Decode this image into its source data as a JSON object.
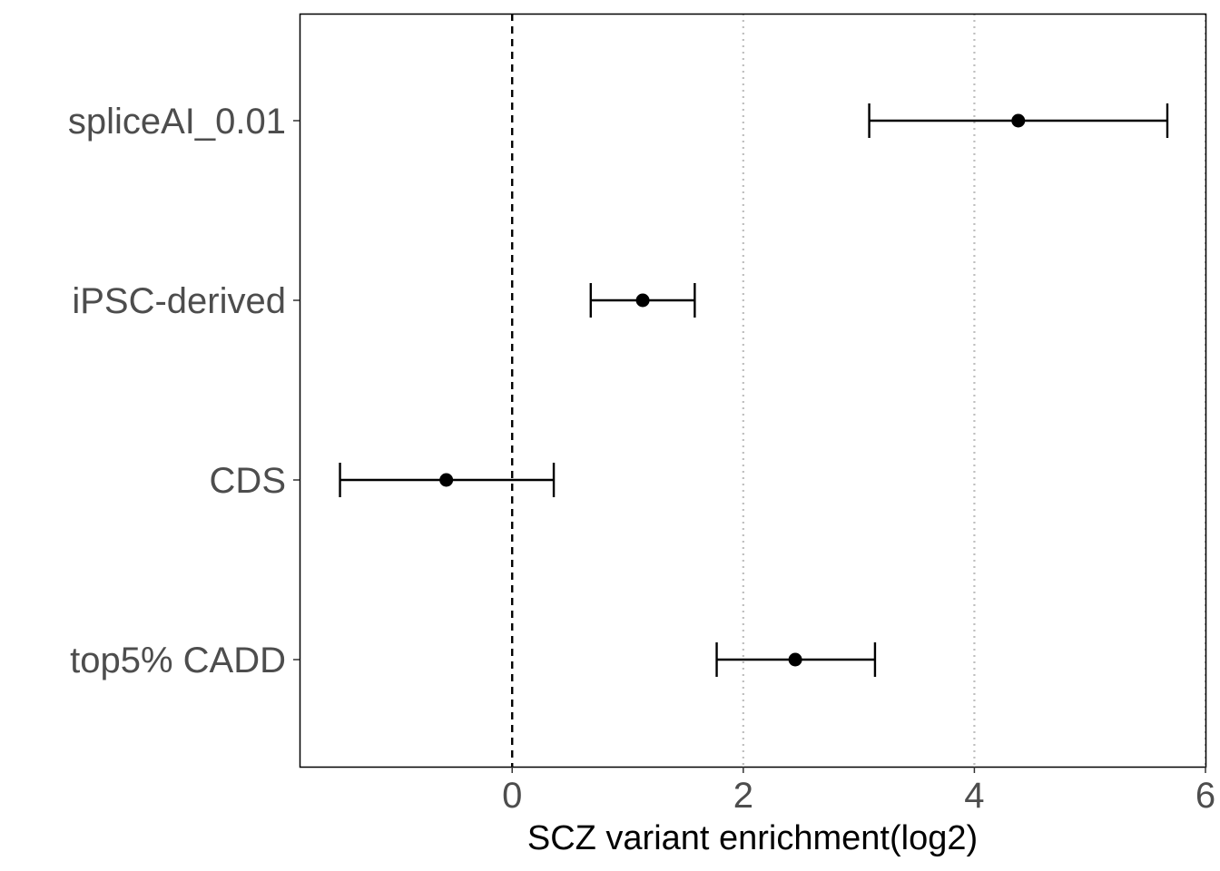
{
  "chart_data": {
    "type": "scatter",
    "subtype": "forest-plot",
    "categories": [
      "spliceAI_0.01",
      "iPSC-derived",
      "CDS",
      "top5% CADD"
    ],
    "series": [
      {
        "points": [
          {
            "category": "spliceAI_0.01",
            "estimate": 4.38,
            "lower": 3.09,
            "upper": 5.67
          },
          {
            "category": "iPSC-derived",
            "estimate": 1.13,
            "lower": 0.68,
            "upper": 1.58
          },
          {
            "category": "CDS",
            "estimate": -0.57,
            "lower": -1.49,
            "upper": 0.36
          },
          {
            "category": "top5% CADD",
            "estimate": 2.45,
            "lower": 1.77,
            "upper": 3.14
          }
        ]
      }
    ],
    "xlabel": "SCZ variant enrichment(log2)",
    "ylabel": "",
    "xlim": [
      -1.84,
      6.0
    ],
    "xticks": [
      "0",
      "2",
      "4",
      "6"
    ],
    "reference_line": 0,
    "grid": "vertical dotted at x ticks",
    "legend": "none"
  },
  "colors": {
    "point": "#000000",
    "errorbar": "#000000",
    "grid": "#bebebe",
    "reference_line": "#000000",
    "frame": "#000000",
    "labels": "#4d4d4d"
  }
}
